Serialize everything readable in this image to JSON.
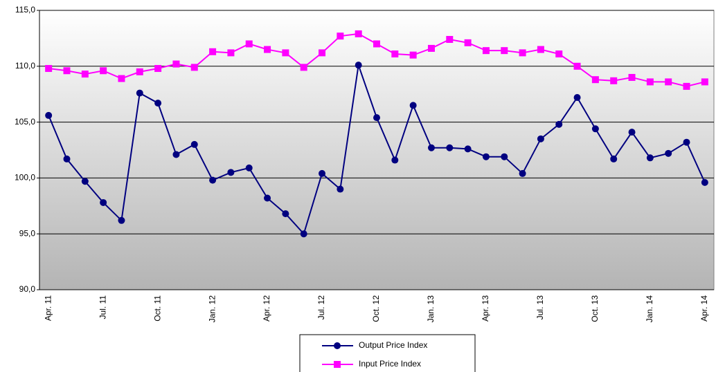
{
  "chart_data": {
    "type": "line",
    "categories": [
      "Apr. 11",
      null,
      null,
      "Jul. 11",
      null,
      null,
      "Oct. 11",
      null,
      null,
      "Jan. 12",
      null,
      null,
      "Apr. 12",
      null,
      null,
      "Jul. 12",
      null,
      null,
      "Oct. 12",
      null,
      null,
      "Jan. 13",
      null,
      null,
      "Apr. 13",
      null,
      null,
      "Jul. 13",
      null,
      null,
      "Oct. 13",
      null,
      null,
      "Jan. 14",
      null,
      null,
      "Apr. 14"
    ],
    "series": [
      {
        "name": "Output Price Index",
        "color": "#000080",
        "marker": "circle",
        "values": [
          105.6,
          101.7,
          99.7,
          97.8,
          96.2,
          107.6,
          106.7,
          102.1,
          103.0,
          99.8,
          100.5,
          100.9,
          98.2,
          96.8,
          95.0,
          100.4,
          99.0,
          110.1,
          105.4,
          101.6,
          106.5,
          102.7,
          102.7,
          102.6,
          101.9,
          101.9,
          100.4,
          103.5,
          104.8,
          107.2,
          104.4,
          101.7,
          104.1,
          101.8,
          102.2,
          103.2,
          99.6
        ]
      },
      {
        "name": "Input Price Index",
        "color": "#ff00ff",
        "marker": "square",
        "values": [
          109.8,
          109.6,
          109.3,
          109.6,
          108.9,
          109.5,
          109.8,
          110.2,
          109.9,
          111.3,
          111.2,
          112.0,
          111.5,
          111.2,
          109.9,
          111.2,
          112.7,
          112.9,
          112.0,
          111.1,
          111.0,
          111.6,
          112.4,
          112.1,
          111.4,
          111.4,
          111.2,
          111.5,
          111.1,
          110.0,
          108.8,
          108.7,
          109.0,
          108.6,
          108.6,
          108.2,
          108.6
        ]
      }
    ],
    "ylim": [
      90,
      115
    ],
    "yticks": [
      {
        "value": 90,
        "label": "90,0"
      },
      {
        "value": 95,
        "label": "95,0"
      },
      {
        "value": 100,
        "label": "100,0"
      },
      {
        "value": 105,
        "label": "105,0"
      },
      {
        "value": 110,
        "label": "110,0"
      },
      {
        "value": 115,
        "label": "115,0"
      }
    ],
    "grid": true,
    "legend": "bottom"
  }
}
